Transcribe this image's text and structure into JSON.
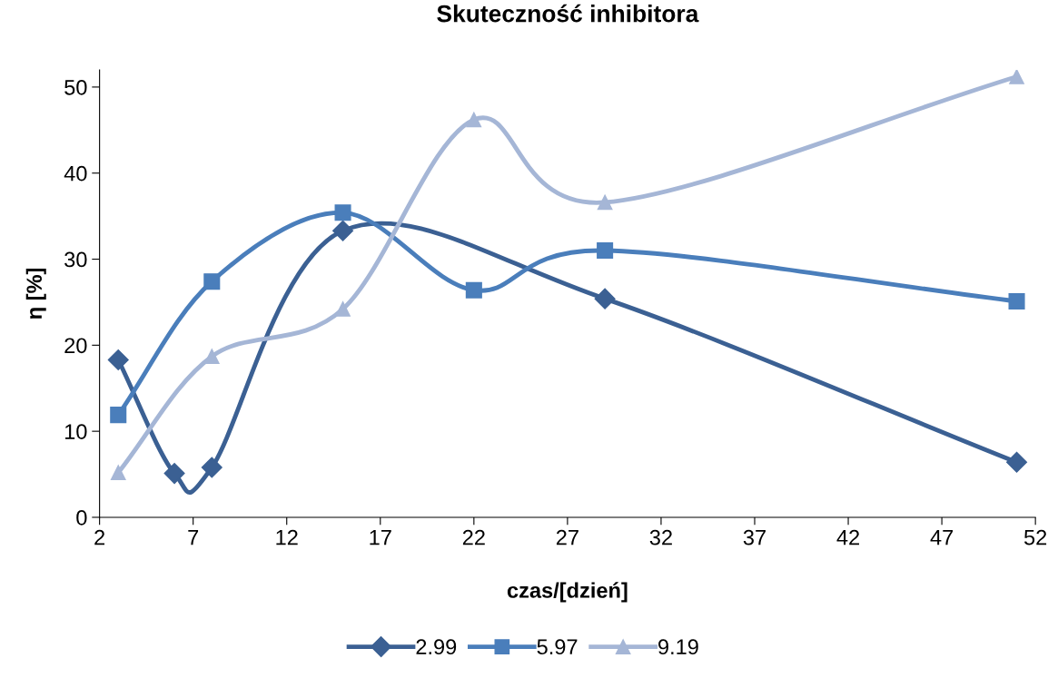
{
  "chart_data": {
    "type": "line",
    "title": "Skuteczność inhibitora",
    "xlabel": "czas/[dzień]",
    "ylabel": "η [%]",
    "x": [
      3,
      6,
      8,
      15,
      29,
      51
    ],
    "series": [
      {
        "name": "2.99",
        "color": "#3b6093",
        "marker": "diamond",
        "values": [
          18.3,
          5.1,
          5.8,
          33.3,
          25.4,
          6.4
        ]
      },
      {
        "name": "5.97",
        "color": "#4a7ebb",
        "marker": "square",
        "x": [
          3,
          8,
          15,
          22,
          29,
          51
        ],
        "values": [
          11.9,
          27.4,
          35.4,
          26.4,
          31.0,
          25.1
        ]
      },
      {
        "name": "9.19",
        "color": "#a5b6d6",
        "marker": "triangle",
        "x": [
          3,
          8,
          15,
          22,
          29,
          51
        ],
        "values": [
          5.2,
          18.7,
          24.2,
          46.2,
          36.6,
          51.2
        ]
      }
    ],
    "xlim": [
      2,
      52
    ],
    "xticks": [
      2,
      7,
      12,
      17,
      22,
      27,
      32,
      37,
      42,
      47,
      52
    ],
    "ylim": [
      0,
      52
    ],
    "yticks": [
      0,
      10,
      20,
      30,
      40,
      50
    ],
    "grid": false,
    "legend": "bottom",
    "line_style": "solid"
  }
}
